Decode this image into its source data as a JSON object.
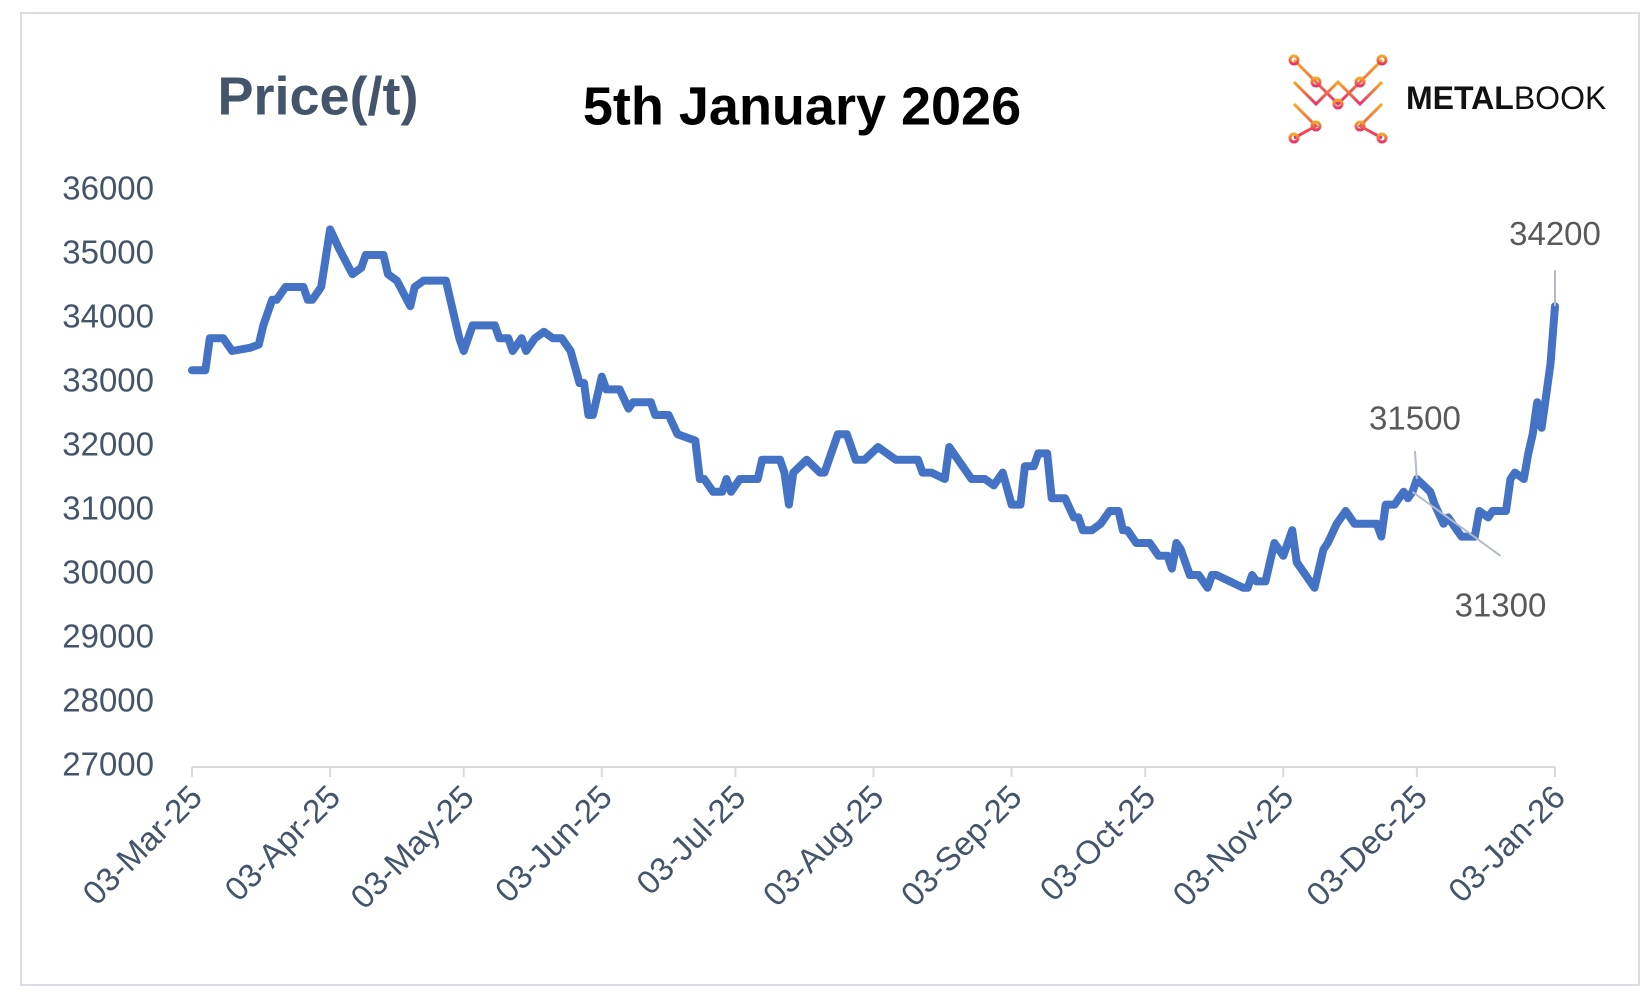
{
  "chart_data": {
    "type": "line",
    "title": "5th January 2026",
    "y_label": "Price(/t)",
    "logo": {
      "strong": "METAL",
      "light": "BOOK"
    },
    "color": "#4472c4",
    "grid": false,
    "ylim": [
      27000,
      36000
    ],
    "yticks": [
      27000,
      28000,
      29000,
      30000,
      31000,
      32000,
      33000,
      34000,
      35000,
      36000
    ],
    "xlim": [
      "2025-03-03",
      "2026-01-03"
    ],
    "xticks": [
      {
        "value": "2025-03-03",
        "label": "03-Mar-25"
      },
      {
        "value": "2025-04-03",
        "label": "03-Apr-25"
      },
      {
        "value": "2025-05-03",
        "label": "03-May-25"
      },
      {
        "value": "2025-06-03",
        "label": "03-Jun-25"
      },
      {
        "value": "2025-07-03",
        "label": "03-Jul-25"
      },
      {
        "value": "2025-08-03",
        "label": "03-Aug-25"
      },
      {
        "value": "2025-09-03",
        "label": "03-Sep-25"
      },
      {
        "value": "2025-10-03",
        "label": "03-Oct-25"
      },
      {
        "value": "2025-11-03",
        "label": "03-Nov-25"
      },
      {
        "value": "2025-12-03",
        "label": "03-Dec-25"
      },
      {
        "value": "2026-01-03",
        "label": "03-Jan-26"
      }
    ],
    "x": [
      "2025-03-03",
      "2025-03-06",
      "2025-03-07",
      "2025-03-10",
      "2025-03-12",
      "2025-03-16",
      "2025-03-18",
      "2025-03-19",
      "2025-03-21",
      "2025-03-22",
      "2025-03-24",
      "2025-03-28",
      "2025-03-29",
      "2025-03-30",
      "2025-04-01",
      "2025-04-03",
      "2025-04-05",
      "2025-04-08",
      "2025-04-10",
      "2025-04-11",
      "2025-04-15",
      "2025-04-16",
      "2025-04-18",
      "2025-04-21",
      "2025-04-22",
      "2025-04-24",
      "2025-04-29",
      "2025-05-01",
      "2025-05-02",
      "2025-05-03",
      "2025-05-05",
      "2025-05-10",
      "2025-05-11",
      "2025-05-13",
      "2025-05-14",
      "2025-05-16",
      "2025-05-17",
      "2025-05-19",
      "2025-05-21",
      "2025-05-23",
      "2025-05-25",
      "2025-05-27",
      "2025-05-29",
      "2025-05-30",
      "2025-05-31",
      "2025-06-01",
      "2025-06-03",
      "2025-06-04",
      "2025-06-07",
      "2025-06-09",
      "2025-06-10",
      "2025-06-14",
      "2025-06-15",
      "2025-06-18",
      "2025-06-20",
      "2025-06-24",
      "2025-06-25",
      "2025-06-26",
      "2025-06-28",
      "2025-06-30",
      "2025-07-01",
      "2025-07-02",
      "2025-07-04",
      "2025-07-08",
      "2025-07-09",
      "2025-07-13",
      "2025-07-14",
      "2025-07-15",
      "2025-07-16",
      "2025-07-19",
      "2025-07-22",
      "2025-07-23",
      "2025-07-26",
      "2025-07-28",
      "2025-07-30",
      "2025-08-01",
      "2025-08-04",
      "2025-08-08",
      "2025-08-13",
      "2025-08-14",
      "2025-08-16",
      "2025-08-19",
      "2025-08-20",
      "2025-08-22",
      "2025-08-25",
      "2025-08-28",
      "2025-08-30",
      "2025-09-01",
      "2025-09-03",
      "2025-09-05",
      "2025-09-06",
      "2025-09-08",
      "2025-09-09",
      "2025-09-11",
      "2025-09-12",
      "2025-09-15",
      "2025-09-17",
      "2025-09-18",
      "2025-09-19",
      "2025-09-21",
      "2025-09-23",
      "2025-09-25",
      "2025-09-27",
      "2025-09-28",
      "2025-09-29",
      "2025-10-01",
      "2025-10-04",
      "2025-10-06",
      "2025-10-08",
      "2025-10-09",
      "2025-10-10",
      "2025-10-11",
      "2025-10-13",
      "2025-10-15",
      "2025-10-17",
      "2025-10-18",
      "2025-10-19",
      "2025-10-22",
      "2025-10-25",
      "2025-10-26",
      "2025-10-27",
      "2025-10-28",
      "2025-10-30",
      "2025-10-31",
      "2025-11-01",
      "2025-11-03",
      "2025-11-05",
      "2025-11-06",
      "2025-11-09",
      "2025-11-10",
      "2025-11-12",
      "2025-11-13",
      "2025-11-15",
      "2025-11-17",
      "2025-11-19",
      "2025-11-24",
      "2025-11-25",
      "2025-11-26",
      "2025-11-28",
      "2025-11-30",
      "2025-12-01",
      "2025-12-02",
      "2025-12-03",
      "2025-12-06",
      "2025-12-07",
      "2025-12-09",
      "2025-12-10",
      "2025-12-12",
      "2025-12-13",
      "2025-12-16",
      "2025-12-17",
      "2025-12-19",
      "2025-12-20",
      "2025-12-23",
      "2025-12-24",
      "2025-12-25",
      "2025-12-27",
      "2025-12-28",
      "2025-12-29",
      "2025-12-30",
      "2025-12-31",
      "2026-01-01",
      "2026-01-02",
      "2026-01-03"
    ],
    "values": [
      33200,
      33200,
      33700,
      33700,
      33500,
      33550,
      33600,
      33900,
      34300,
      34300,
      34500,
      34500,
      34300,
      34300,
      34500,
      35400,
      35100,
      34700,
      34800,
      35000,
      35000,
      34700,
      34600,
      34200,
      34500,
      34600,
      34600,
      34000,
      33700,
      33500,
      33900,
      33900,
      33700,
      33700,
      33500,
      33700,
      33500,
      33700,
      33800,
      33700,
      33700,
      33500,
      33000,
      33000,
      32500,
      32500,
      33100,
      32900,
      32900,
      32600,
      32700,
      32700,
      32500,
      32500,
      32200,
      32100,
      31500,
      31500,
      31300,
      31300,
      31500,
      31300,
      31500,
      31500,
      31800,
      31800,
      31600,
      31100,
      31600,
      31800,
      31600,
      31600,
      32200,
      32200,
      31800,
      31800,
      32000,
      31800,
      31800,
      31600,
      31600,
      31500,
      32000,
      31800,
      31500,
      31500,
      31400,
      31600,
      31100,
      31100,
      31700,
      31700,
      31900,
      31900,
      31200,
      31200,
      30900,
      30900,
      30700,
      30700,
      30800,
      31000,
      31000,
      30700,
      30700,
      30500,
      30500,
      30300,
      30300,
      30100,
      30500,
      30400,
      30000,
      30000,
      29800,
      30000,
      30000,
      29900,
      29800,
      29800,
      30000,
      29900,
      29900,
      30200,
      30500,
      30300,
      30700,
      30200,
      29900,
      29800,
      30400,
      30500,
      30800,
      31000,
      30800,
      30800,
      30600,
      31100,
      31100,
      31300,
      31200,
      31300,
      31500,
      31300,
      31100,
      30800,
      30900,
      30700,
      30600,
      30600,
      31000,
      30900,
      31000,
      31000,
      31500,
      31600,
      31500,
      31900,
      32200,
      32700,
      32300,
      32800,
      33300,
      34200
    ],
    "annotations": [
      {
        "x": "2025-12-03",
        "value": 31500
      },
      {
        "x": "2025-12-02",
        "value": 31300
      },
      {
        "x": "2026-01-03",
        "value": 34200
      }
    ]
  }
}
